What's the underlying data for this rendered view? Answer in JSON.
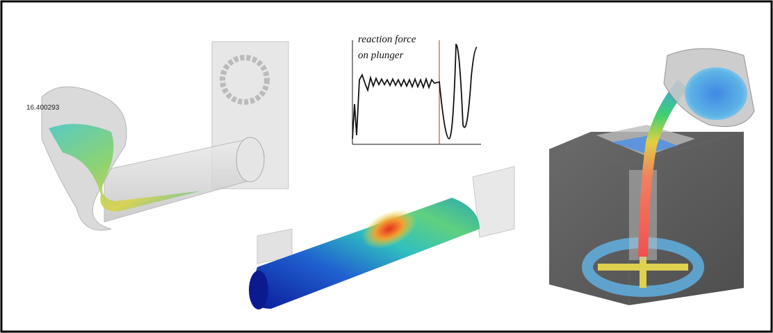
{
  "timestamp": "16.400293",
  "inset": {
    "label_lines": [
      "reaction force",
      "on plunger"
    ]
  }
}
